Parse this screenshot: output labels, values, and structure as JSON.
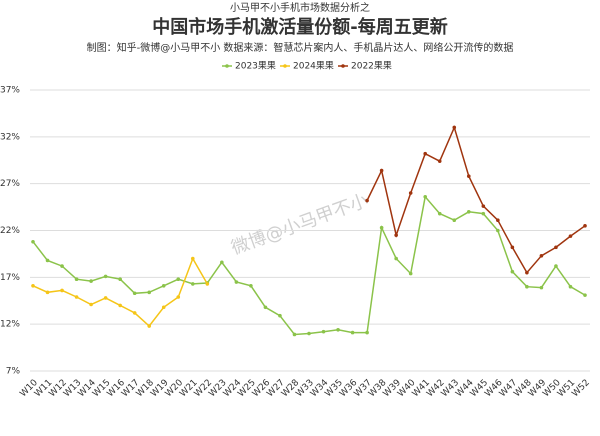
{
  "chart_data": {
    "type": "line",
    "supertitle": "小马甲不小手机市场数据分析之",
    "title": "中国市场手机激活量份额-每周五更新",
    "subtitle": "制图：知乎-微博@小马甲不小   数据来源：智慧芯片案内人、手机晶片达人、网络公开流传的数据",
    "watermark": "微博@小马甲不小",
    "categories": [
      "W10",
      "W11",
      "W12",
      "W13",
      "W14",
      "W15",
      "W16",
      "W17",
      "W18",
      "W19",
      "W20",
      "W21",
      "W22",
      "W23",
      "W24",
      "W25",
      "W26",
      "W27",
      "W28",
      "W33",
      "W34",
      "W35",
      "W36",
      "W37",
      "W38",
      "W39",
      "W40",
      "W41",
      "W42",
      "W43",
      "W44",
      "W45",
      "W46",
      "W47",
      "W48",
      "W49",
      "W50",
      "W51",
      "W52"
    ],
    "series": [
      {
        "name": "2023果果",
        "color": "#8bc34a",
        "values": [
          20.8,
          18.8,
          18.2,
          16.8,
          16.6,
          17.1,
          16.8,
          15.3,
          15.4,
          16.1,
          16.8,
          16.3,
          16.4,
          18.6,
          16.5,
          16.1,
          13.8,
          12.9,
          10.9,
          11.0,
          11.2,
          11.4,
          11.1,
          11.1,
          22.3,
          19.0,
          17.4,
          25.6,
          23.8,
          23.1,
          24.0,
          23.8,
          22.0,
          17.6,
          16.0,
          15.9,
          18.2,
          16.0,
          15.1
        ]
      },
      {
        "name": "2024果果",
        "color": "#f5c518",
        "values": [
          16.1,
          15.4,
          15.6,
          14.9,
          14.1,
          14.8,
          14.0,
          13.2,
          11.8,
          13.8,
          14.9,
          19.0,
          16.3,
          null,
          null,
          null,
          null,
          null,
          null,
          null,
          null,
          null,
          null,
          null,
          null,
          null,
          null,
          null,
          null,
          null,
          null,
          null,
          null,
          null,
          null,
          null,
          null,
          null,
          null
        ]
      },
      {
        "name": "2022果果",
        "color": "#a0350f",
        "values": [
          null,
          null,
          null,
          null,
          null,
          null,
          null,
          null,
          null,
          null,
          null,
          null,
          null,
          null,
          null,
          null,
          null,
          null,
          null,
          null,
          null,
          null,
          null,
          25.2,
          28.4,
          21.5,
          26.0,
          30.2,
          29.4,
          33.0,
          27.8,
          24.6,
          23.1,
          20.2,
          17.5,
          19.3,
          20.2,
          21.4,
          22.5
        ]
      }
    ],
    "ylim": [
      7,
      37
    ],
    "yticks": [
      {
        "value": 7,
        "label": "7%"
      },
      {
        "value": 12,
        "label": "12%"
      },
      {
        "value": 17,
        "label": "17%"
      },
      {
        "value": 22,
        "label": "22%"
      },
      {
        "value": 27,
        "label": "27%"
      },
      {
        "value": 32,
        "label": "32%"
      },
      {
        "value": 37,
        "label": "37%"
      }
    ],
    "grid": true
  }
}
